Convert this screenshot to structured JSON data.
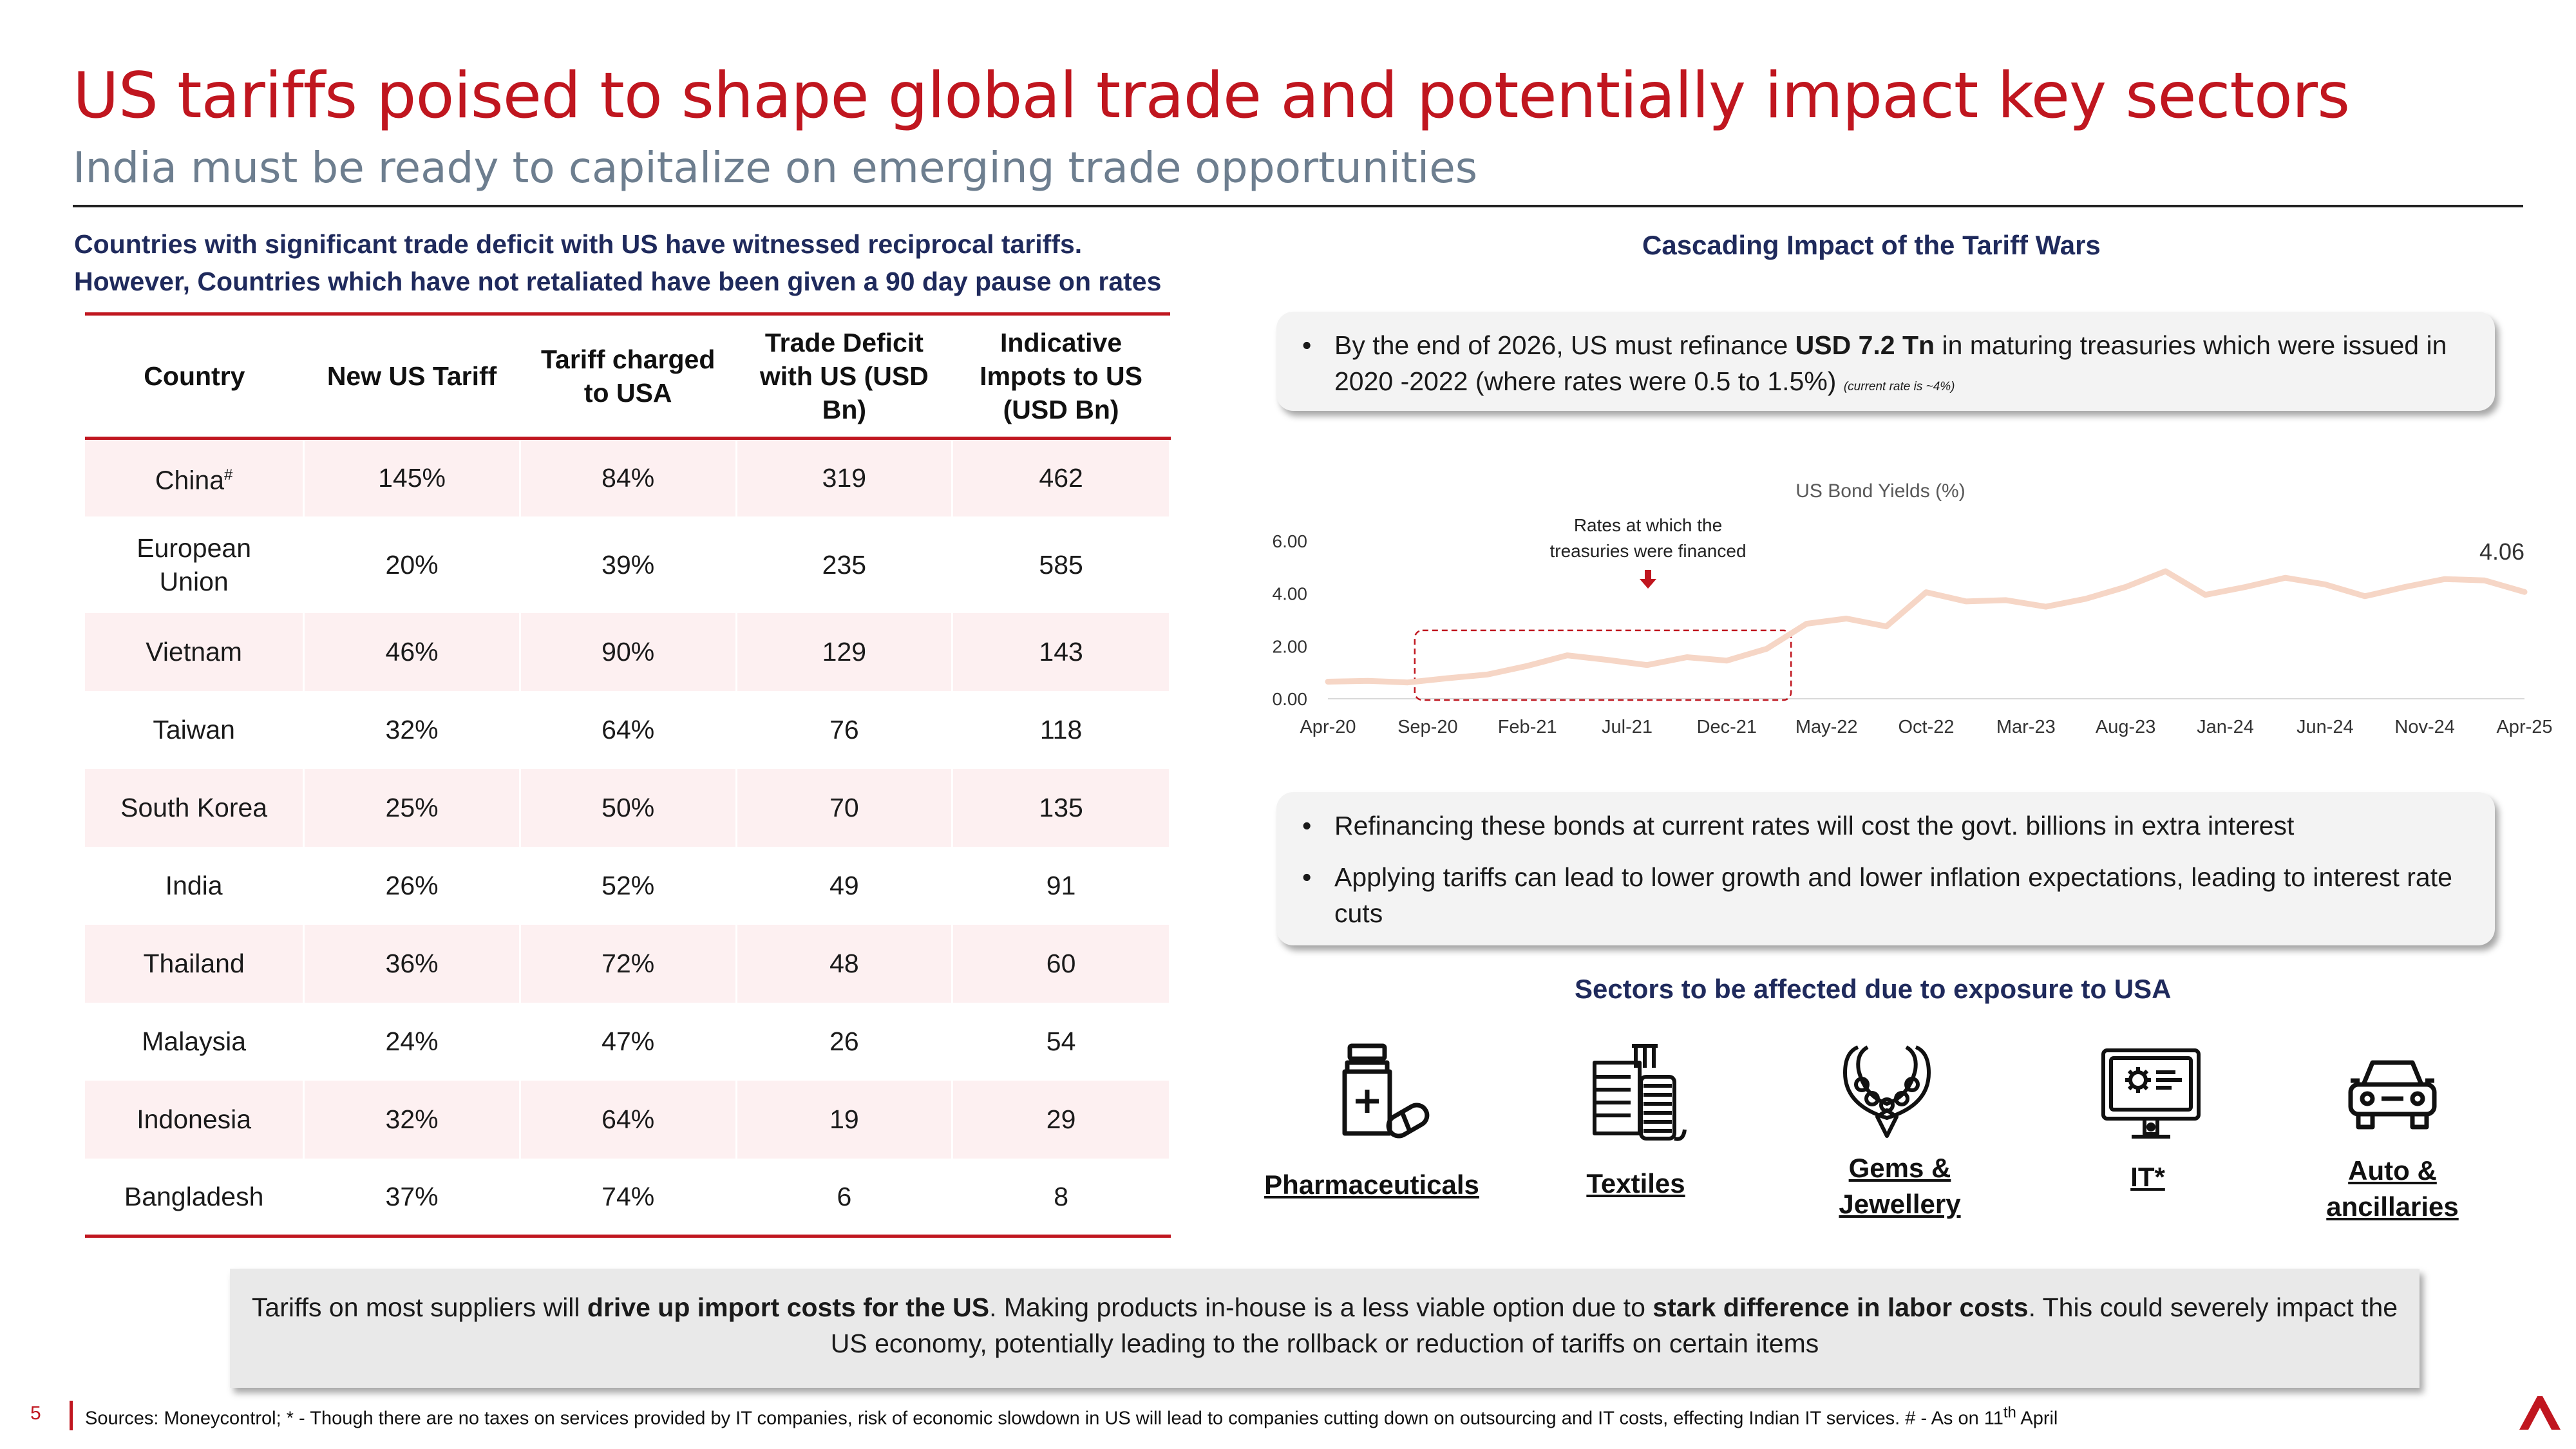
{
  "header": {
    "title": "US tariffs poised to shape global trade and potentially impact key sectors",
    "subtitle": "India must be ready to capitalize on emerging trade opportunities"
  },
  "left": {
    "heading_line1": "Countries with significant trade deficit with US have witnessed reciprocal tariffs.",
    "heading_line2": "However, Countries which have not retaliated have been given a 90 day pause on rates",
    "table": {
      "columns": [
        "Country",
        "New US Tariff",
        "Tariff charged to USA",
        "Trade Deficit with US (USD Bn)",
        "Indicative Impots to US (USD Bn)"
      ],
      "rows": [
        {
          "country": "China",
          "mark": "#",
          "tariff": "145%",
          "charged": "84%",
          "deficit": "319",
          "imports": "462"
        },
        {
          "country": "European Union",
          "mark": "",
          "tariff": "20%",
          "charged": "39%",
          "deficit": "235",
          "imports": "585"
        },
        {
          "country": "Vietnam",
          "mark": "",
          "tariff": "46%",
          "charged": "90%",
          "deficit": "129",
          "imports": "143"
        },
        {
          "country": "Taiwan",
          "mark": "",
          "tariff": "32%",
          "charged": "64%",
          "deficit": "76",
          "imports": "118"
        },
        {
          "country": "South Korea",
          "mark": "",
          "tariff": "25%",
          "charged": "50%",
          "deficit": "70",
          "imports": "135"
        },
        {
          "country": "India",
          "mark": "",
          "tariff": "26%",
          "charged": "52%",
          "deficit": "49",
          "imports": "91"
        },
        {
          "country": "Thailand",
          "mark": "",
          "tariff": "36%",
          "charged": "72%",
          "deficit": "48",
          "imports": "60"
        },
        {
          "country": "Malaysia",
          "mark": "",
          "tariff": "24%",
          "charged": "47%",
          "deficit": "26",
          "imports": "54"
        },
        {
          "country": "Indonesia",
          "mark": "",
          "tariff": "32%",
          "charged": "64%",
          "deficit": "19",
          "imports": "29"
        },
        {
          "country": "Bangladesh",
          "mark": "",
          "tariff": "37%",
          "charged": "74%",
          "deficit": "6",
          "imports": "8"
        }
      ]
    }
  },
  "right": {
    "heading": "Cascading Impact of the Tariff Wars",
    "box1": {
      "pre": "By the end of 2026, US must refinance ",
      "bold": "USD 7.2 Tn",
      "post": " in maturing treasuries which were issued in 2020 -2022 (where rates were 0.5 to 1.5%) ",
      "note": "(current rate is ~4%)"
    },
    "box2": {
      "bullet1": "Refinancing these bonds at current rates will cost the govt. billions in extra interest",
      "bullet2": "Applying tariffs can lead to lower growth and lower inflation expectations, leading to interest rate cuts"
    },
    "sectors": {
      "heading": "Sectors to be affected due to exposure to USA",
      "items": [
        {
          "label": "Pharmaceuticals",
          "icon": "medicine-bottle-icon"
        },
        {
          "label": "Textiles",
          "icon": "textile-icon"
        },
        {
          "label": "Gems & Jewellery",
          "icon": "necklace-icon"
        },
        {
          "label": "IT*",
          "icon": "computer-gear-icon"
        },
        {
          "label": "Auto & ancillaries",
          "icon": "car-icon"
        }
      ]
    }
  },
  "chart_data": {
    "type": "line",
    "title": "US Bond Yields (%)",
    "x_ticks": [
      "Apr-20",
      "Sep-20",
      "Feb-21",
      "Jul-21",
      "Dec-21",
      "May-22",
      "Oct-22",
      "Mar-23",
      "Aug-23",
      "Jan-24",
      "Jun-24",
      "Nov-24",
      "Apr-25"
    ],
    "y_ticks": [
      "0.00",
      "2.00",
      "4.00",
      "6.00"
    ],
    "ylim": [
      0,
      6
    ],
    "series": [
      {
        "x": [
          "Apr-20",
          "Jun-20",
          "Aug-20",
          "Oct-20",
          "Dec-20",
          "Feb-21",
          "Apr-21",
          "Jun-21",
          "Aug-21",
          "Oct-21",
          "Dec-21",
          "Feb-22",
          "Apr-22",
          "Jun-22",
          "Aug-22",
          "Oct-22",
          "Dec-22",
          "Feb-23",
          "Apr-23",
          "Jun-23",
          "Aug-23",
          "Oct-23",
          "Dec-23",
          "Feb-24",
          "Apr-24",
          "Jun-24",
          "Aug-24",
          "Oct-24",
          "Dec-24",
          "Feb-25",
          "Apr-25"
        ],
        "values": [
          0.65,
          0.68,
          0.62,
          0.78,
          0.92,
          1.25,
          1.65,
          1.48,
          1.28,
          1.58,
          1.45,
          1.9,
          2.85,
          3.05,
          2.75,
          4.05,
          3.7,
          3.75,
          3.5,
          3.8,
          4.25,
          4.85,
          3.95,
          4.25,
          4.6,
          4.35,
          3.9,
          4.25,
          4.55,
          4.5,
          4.06
        ]
      }
    ],
    "end_label": "4.06",
    "annotation": "Rates at which the treasuries were financed",
    "highlight_range": [
      "Sep-20",
      "May-22"
    ],
    "colors": {
      "line": "#f6d6c6",
      "highlight": "#c0161f"
    },
    "grid": false
  },
  "bottom": {
    "t1": "Tariffs on most suppliers will ",
    "b1": "drive up import costs for the US",
    "t2": ". Making products in-house is a less viable option due to ",
    "b2": "stark difference in labor costs",
    "t3": ". This could severely impact the US economy, potentially leading to the rollback or reduction of tariffs on certain items"
  },
  "footer": {
    "page_number": "5",
    "sources_pre": "Sources: Moneycontrol; * - Though there are no taxes on services provided by IT companies, risk of economic slowdown in US will lead to companies cutting down on outsourcing and IT costs, effecting Indian IT services. # - As on 11",
    "sources_sup": "th",
    "sources_post": " April"
  },
  "colors": {
    "accent": "#c0161f",
    "navy": "#1f2a5c",
    "row_tint": "#fdf0f1"
  }
}
